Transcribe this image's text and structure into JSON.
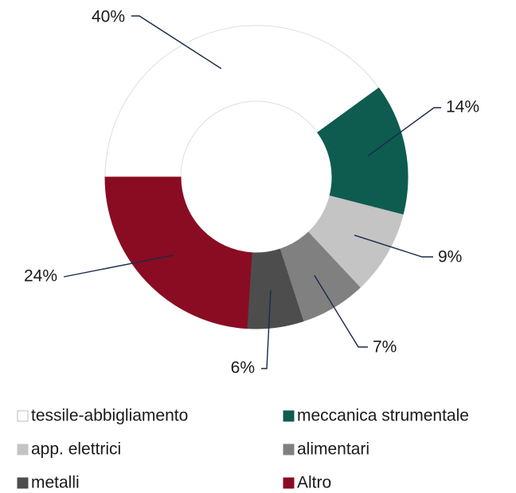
{
  "chart_data": {
    "type": "donut",
    "categories": [
      "tessile-abbigliamento",
      "meccanica strumentale",
      "app. elettrici",
      "alimentari",
      "metalli",
      "Altro"
    ],
    "values": [
      40,
      14,
      9,
      7,
      6,
      24
    ],
    "value_labels": [
      "40%",
      "14%",
      "9%",
      "7%",
      "6%",
      "24%"
    ],
    "colors": [
      "#ffffff",
      "#0e5c4f",
      "#c4c4c4",
      "#808080",
      "#4d4d4d",
      "#8a0c22"
    ],
    "legend": "bottom"
  }
}
